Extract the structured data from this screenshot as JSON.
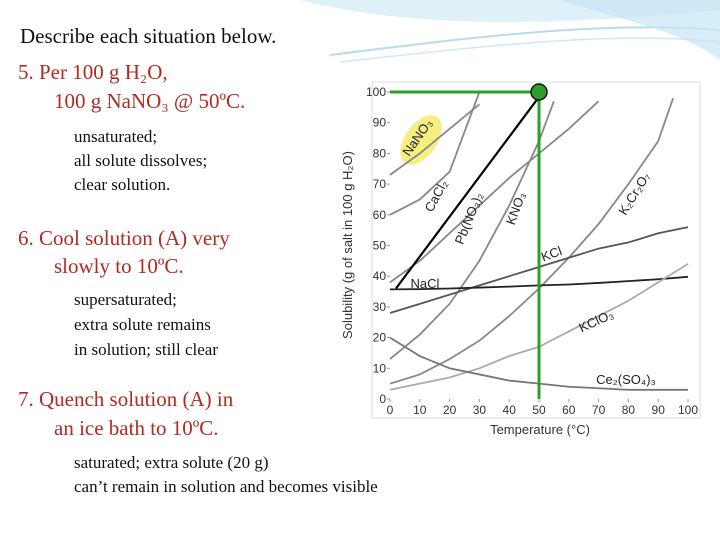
{
  "title": "Describe each situation below.",
  "items": [
    {
      "heading": [
        "5.  Per 100 g H₂O,",
        "100 g NaNO₃ @ 50ºC."
      ],
      "answer": [
        "unsaturated;",
        "all solute dissolves;",
        "clear solution."
      ]
    },
    {
      "heading": [
        "6.  Cool solution (A) very",
        "slowly to 10ºC."
      ],
      "answer": [
        "supersaturated;",
        "extra solute remains",
        "in solution; still clear"
      ]
    },
    {
      "heading": [
        "7.  Quench solution (A) in",
        "an ice bath to 10ºC."
      ],
      "answer": [
        "saturated; extra solute (20 g)",
        "can’t remain in solution and becomes visible"
      ]
    }
  ],
  "chart_data": {
    "type": "line",
    "x_label": "Temperature (°C)",
    "y_label": "Solubility (g of salt in 100 g H₂O)",
    "xlim": [
      0,
      100
    ],
    "ylim": [
      0,
      100
    ],
    "xticks": [
      0,
      10,
      20,
      30,
      40,
      50,
      60,
      70,
      80,
      90,
      100
    ],
    "yticks": [
      0,
      10,
      20,
      30,
      40,
      50,
      60,
      70,
      80,
      90,
      100
    ],
    "series": [
      {
        "name": "NaNO₃",
        "color": "#888888",
        "x": [
          0,
          10,
          20,
          30
        ],
        "values": [
          73,
          80,
          88,
          96
        ]
      },
      {
        "name": "CaCl₂",
        "color": "#888888",
        "x": [
          0,
          10,
          20,
          30
        ],
        "values": [
          60,
          65,
          74,
          100
        ]
      },
      {
        "name": "Pb(NO₃)₂",
        "color": "#888888",
        "x": [
          0,
          10,
          20,
          30,
          40,
          50,
          60,
          70
        ],
        "values": [
          38,
          45,
          54,
          63,
          72,
          80,
          88,
          97
        ]
      },
      {
        "name": "KNO₃",
        "color": "#888888",
        "x": [
          0,
          10,
          20,
          30,
          40,
          50,
          55
        ],
        "values": [
          13,
          21,
          31,
          45,
          63,
          84,
          97
        ]
      },
      {
        "name": "K₂Cr₂O₇",
        "color": "#888888",
        "x": [
          0,
          10,
          20,
          30,
          40,
          50,
          60,
          70,
          80,
          90,
          95
        ],
        "values": [
          5,
          8,
          13,
          19,
          27,
          36,
          46,
          57,
          70,
          84,
          98
        ]
      },
      {
        "name": "KCl",
        "color": "#555555",
        "x": [
          0,
          10,
          20,
          30,
          40,
          50,
          60,
          70,
          80,
          90,
          100
        ],
        "values": [
          28,
          31,
          34,
          37,
          40,
          43,
          46,
          49,
          51,
          54,
          56
        ]
      },
      {
        "name": "NaCl",
        "color": "#222222",
        "x": [
          0,
          10,
          20,
          30,
          40,
          50,
          60,
          70,
          80,
          90,
          100
        ],
        "values": [
          35.7,
          35.8,
          36,
          36.3,
          36.6,
          37,
          37.3,
          37.8,
          38.4,
          39,
          39.8
        ]
      },
      {
        "name": "KClO₃",
        "color": "#aaaaaa",
        "x": [
          0,
          10,
          20,
          30,
          40,
          50,
          60,
          70,
          80,
          90,
          100
        ],
        "values": [
          3,
          5,
          7,
          10,
          14,
          17,
          22,
          27,
          32,
          38,
          44
        ]
      },
      {
        "name": "Ce₂(SO₄)₃",
        "color": "#777777",
        "x": [
          0,
          10,
          20,
          30,
          40,
          50,
          60,
          70,
          80,
          90,
          100
        ],
        "values": [
          20,
          14,
          10,
          8,
          6,
          5,
          4,
          3.5,
          3,
          3,
          3
        ]
      },
      {
        "color": "#000000",
        "x": [
          2,
          52
        ],
        "values": [
          36,
          101
        ]
      }
    ],
    "highlight": {
      "x": 50,
      "y": 100,
      "color": "#2e9e2e"
    }
  }
}
